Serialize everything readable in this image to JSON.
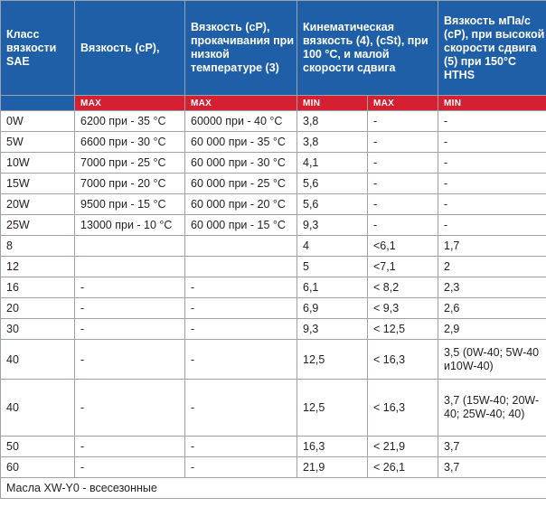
{
  "headers": [
    "Класс вязкости SAE",
    "Вязкость (cP),",
    "Вязкость (cP), прокачивания при низкой температуре (3)",
    "Кинематическая вязкость (4), (cSt), при 100 °C, и малой скорости сдвига",
    "Вязкость мПа/с (cP), при высокой скорости сдвига (5) при 150°C HTHS"
  ],
  "subheaders": [
    "MAX",
    "MAX",
    "MIN",
    "MAX",
    "MIN"
  ],
  "rows": [
    {
      "sae": "0W",
      "cp": "6200 при - 35 °C",
      "pump": "60000 при - 40 °C",
      "kmin": "3,8",
      "kmax": "-",
      "hths": "-"
    },
    {
      "sae": "5W",
      "cp": "6600 при - 30 °C",
      "pump": "60 000 при - 35 °C",
      "kmin": "3,8",
      "kmax": "-",
      "hths": "-"
    },
    {
      "sae": "10W",
      "cp": "7000 при - 25 °C",
      "pump": "60 000 при - 30 °C",
      "kmin": "4,1",
      "kmax": "-",
      "hths": "-"
    },
    {
      "sae": "15W",
      "cp": "7000 при - 20 °C",
      "pump": "60 000 при - 25 °C",
      "kmin": "5,6",
      "kmax": "-",
      "hths": "-"
    },
    {
      "sae": "20W",
      "cp": "9500 при - 15 °C",
      "pump": "60 000 при - 20 °C",
      "kmin": "5,6",
      "kmax": "-",
      "hths": "-"
    },
    {
      "sae": "25W",
      "cp": "13000 при - 10 °C",
      "pump": "60 000 при - 15 °C",
      "kmin": "9,3",
      "kmax": "-",
      "hths": "-"
    },
    {
      "sae": "8",
      "cp": "",
      "pump": "",
      "kmin": "4",
      "kmax": "<6,1",
      "hths": "1,7"
    },
    {
      "sae": "12",
      "cp": "",
      "pump": "",
      "kmin": "5",
      "kmax": "<7,1",
      "hths": "2"
    },
    {
      "sae": "16",
      "cp": "-",
      "pump": "-",
      "kmin": "6,1",
      "kmax": "< 8,2",
      "hths": "2,3"
    },
    {
      "sae": "20",
      "cp": "-",
      "pump": "-",
      "kmin": "6,9",
      "kmax": "< 9,3",
      "hths": "2,6"
    },
    {
      "sae": "30",
      "cp": "-",
      "pump": "-",
      "kmin": "9,3",
      "kmax": "< 12,5",
      "hths": "2,9"
    },
    {
      "sae": "40",
      "cp": "-",
      "pump": "-",
      "kmin": "12,5",
      "kmax": "< 16,3",
      "hths": "3,5 (0W-40; 5W-40 и10W-40)"
    },
    {
      "sae": "40",
      "cp": "-",
      "pump": "-",
      "kmin": "12,5",
      "kmax": "< 16,3",
      "hths": "3,7 (15W-40; 20W-40; 25W-40; 40)"
    },
    {
      "sae": "50",
      "cp": "-",
      "pump": "-",
      "kmin": "16,3",
      "kmax": "< 21,9",
      "hths": "3,7"
    },
    {
      "sae": "60",
      "cp": "-",
      "pump": "-",
      "kmin": "21,9",
      "kmax": "< 26,1",
      "hths": "3,7"
    }
  ],
  "footnote": "Масла XW-Y0 - всесезонные",
  "colors": {
    "header_blue": "#1f5fa8",
    "max_min_red": "#d42030",
    "grid": "#9aa3ad"
  }
}
